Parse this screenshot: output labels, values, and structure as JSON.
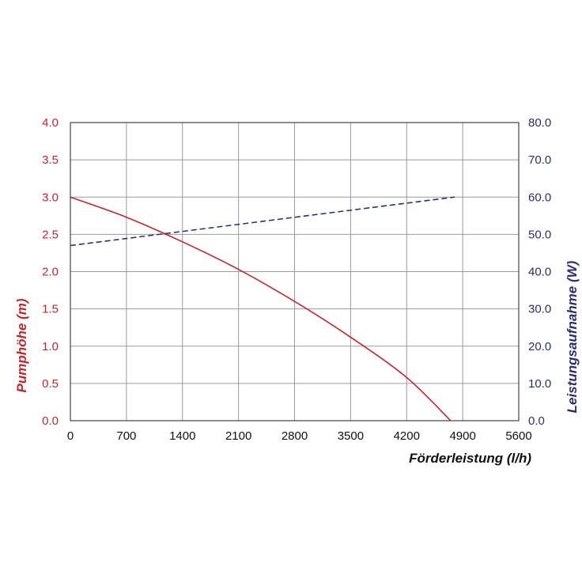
{
  "chart_data": {
    "type": "line",
    "xlabel": "Förderleistung (l/h)",
    "ylabel_left": "Pumphöhe (m)",
    "ylabel_right": "Leistungsaufnahme (W)",
    "xlim": [
      0,
      5600
    ],
    "ylim_left": [
      0,
      4.0
    ],
    "ylim_right": [
      0,
      80.0
    ],
    "x_ticks": [
      "0",
      "700",
      "1400",
      "2100",
      "2800",
      "3500",
      "4200",
      "4900",
      "5600"
    ],
    "y_left_ticks": [
      "0.0",
      "0.5",
      "1.0",
      "1.5",
      "2.0",
      "2.5",
      "3.0",
      "3.5",
      "4.0"
    ],
    "y_right_ticks": [
      "0.0",
      "10.0",
      "20.0",
      "30.0",
      "40.0",
      "50.0",
      "60.0",
      "70.0",
      "80.0"
    ],
    "grid": true,
    "colors": {
      "left": "#c0282d",
      "right": "#2b2f6e",
      "grid": "#9a9a9a"
    },
    "series": [
      {
        "axis": "left",
        "style": "solid",
        "color": "#c0282d",
        "x": [
          0,
          700,
          1400,
          2100,
          2800,
          3500,
          4200,
          4750
        ],
        "y": [
          3.0,
          2.73,
          2.4,
          2.03,
          1.6,
          1.12,
          0.58,
          0.0
        ]
      },
      {
        "axis": "right",
        "style": "dashed",
        "color": "#2b2f6e",
        "x": [
          0,
          4800
        ],
        "y": [
          47.0,
          60.0
        ]
      }
    ]
  }
}
